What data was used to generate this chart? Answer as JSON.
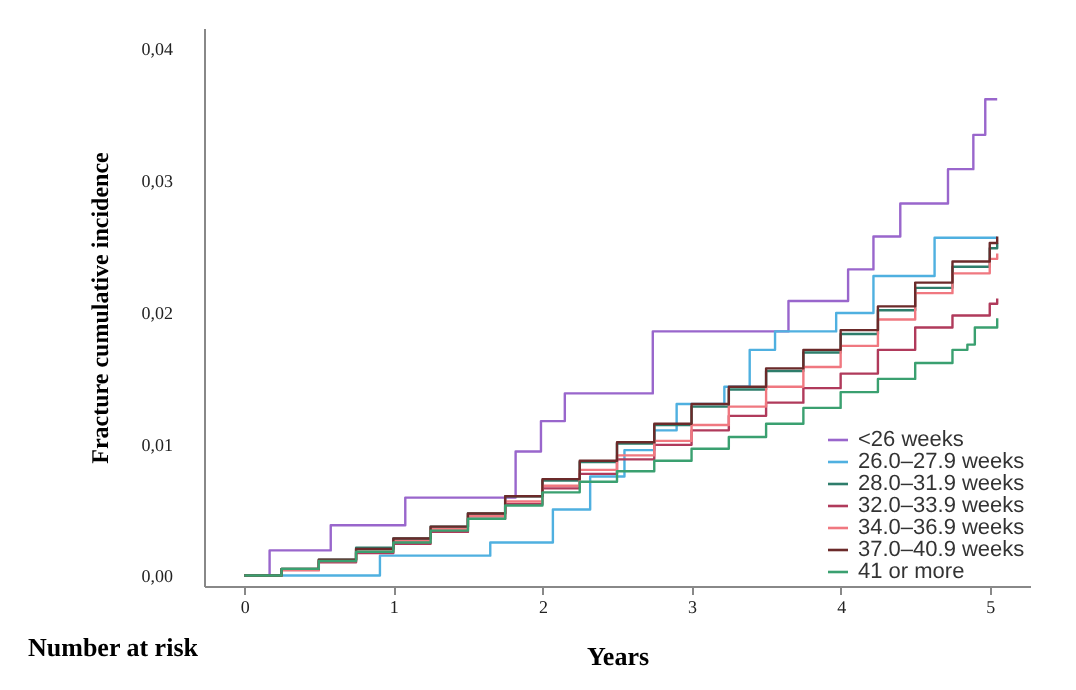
{
  "chart_data": {
    "type": "step",
    "xlabel": "Years",
    "ylabel": "Fracture cumulative incidence",
    "annotations": [
      "Number at risk"
    ],
    "xlim": [
      -0.27,
      5.27
    ],
    "xticks": [
      0,
      1,
      2,
      3,
      4,
      5
    ],
    "ylim": [
      -0.0008,
      0.0415
    ],
    "yticks": [
      {
        "value": 0,
        "label": "0,00"
      },
      {
        "value": 0.01,
        "label": "0,01"
      },
      {
        "value": 0.02,
        "label": "0,02"
      },
      {
        "value": 0.03,
        "label": "0,03"
      },
      {
        "value": 0.04,
        "label": "0,04"
      }
    ],
    "grid": false,
    "legend": "bottom right",
    "series": [
      {
        "name": "<26 weeks",
        "color": "#9966cc",
        "x": [
          0,
          0.17,
          0.58,
          1.08,
          1.82,
          1.99,
          2.15,
          2.74,
          3.65,
          4.05,
          4.22,
          4.4,
          4.72,
          4.89,
          4.97,
          5.05
        ],
        "values": [
          0,
          0.0019,
          0.0038,
          0.0059,
          0.0094,
          0.0117,
          0.0138,
          0.0185,
          0.0208,
          0.0232,
          0.0257,
          0.0282,
          0.0308,
          0.0334,
          0.0361,
          0.0361
        ]
      },
      {
        "name": "26.0–27.9 weeks",
        "color": "#4fb0e0",
        "x": [
          0,
          0.91,
          1.65,
          2.07,
          2.32,
          2.55,
          2.75,
          2.9,
          3.22,
          3.39,
          3.56,
          3.97,
          4.22,
          4.63,
          5.05
        ],
        "values": [
          0,
          0.0015,
          0.0025,
          0.005,
          0.0075,
          0.0095,
          0.011,
          0.013,
          0.0143,
          0.0171,
          0.0185,
          0.0199,
          0.0227,
          0.0256,
          0.0256
        ]
      },
      {
        "name": "28.0–31.9 weeks",
        "color": "#2e7d6b",
        "x": [
          0,
          0.25,
          0.5,
          0.75,
          1,
          1.25,
          1.5,
          1.75,
          2,
          2.25,
          2.5,
          2.75,
          3,
          3.25,
          3.5,
          3.75,
          4,
          4.25,
          4.5,
          4.75,
          5,
          5.05
        ],
        "values": [
          0,
          0.0005,
          0.0012,
          0.0021,
          0.0028,
          0.0037,
          0.0047,
          0.006,
          0.0072,
          0.0086,
          0.01,
          0.0114,
          0.0128,
          0.0141,
          0.0155,
          0.0169,
          0.0183,
          0.0201,
          0.0218,
          0.0234,
          0.0248,
          0.0252
        ]
      },
      {
        "name": "32.0–33.9 weeks",
        "color": "#b03a5b",
        "x": [
          0,
          0.25,
          0.5,
          0.75,
          1,
          1.25,
          1.5,
          1.75,
          2,
          2.25,
          2.5,
          2.75,
          3,
          3.25,
          3.5,
          3.75,
          4,
          4.25,
          4.5,
          4.75,
          5,
          5.05
        ],
        "values": [
          0,
          0.0004,
          0.001,
          0.0017,
          0.0024,
          0.0033,
          0.0043,
          0.0054,
          0.0066,
          0.0077,
          0.0088,
          0.0099,
          0.011,
          0.0121,
          0.0131,
          0.0142,
          0.0153,
          0.0171,
          0.0188,
          0.0197,
          0.0206,
          0.021
        ]
      },
      {
        "name": "34.0–36.9 weeks",
        "color": "#f07880",
        "x": [
          0,
          0.25,
          0.5,
          0.75,
          1,
          1.25,
          1.5,
          1.75,
          2,
          2.25,
          2.5,
          2.75,
          3,
          3.25,
          3.5,
          3.75,
          4,
          4.25,
          4.5,
          4.75,
          5,
          5.05
        ],
        "values": [
          0,
          0.0004,
          0.0011,
          0.0018,
          0.0026,
          0.0035,
          0.0045,
          0.0056,
          0.0068,
          0.008,
          0.0091,
          0.0102,
          0.0114,
          0.0128,
          0.0143,
          0.0158,
          0.0174,
          0.0194,
          0.0214,
          0.0229,
          0.024,
          0.0244
        ]
      },
      {
        "name": "37.0–40.9 weeks",
        "color": "#6b2a2a",
        "x": [
          0,
          0.25,
          0.5,
          0.75,
          1,
          1.25,
          1.5,
          1.75,
          2,
          2.25,
          2.5,
          2.75,
          3,
          3.25,
          3.5,
          3.75,
          4,
          4.25,
          4.5,
          4.75,
          5,
          5.05
        ],
        "values": [
          0,
          0.0005,
          0.0012,
          0.002,
          0.0028,
          0.0037,
          0.0047,
          0.006,
          0.0073,
          0.0087,
          0.0101,
          0.0115,
          0.013,
          0.0143,
          0.0157,
          0.0171,
          0.0186,
          0.0204,
          0.0222,
          0.0238,
          0.0252,
          0.0257
        ]
      },
      {
        "name": "41 or more",
        "color": "#3aa070",
        "x": [
          0,
          0.25,
          0.5,
          0.75,
          1,
          1.25,
          1.5,
          1.75,
          2,
          2.25,
          2.5,
          2.75,
          3,
          3.25,
          3.5,
          3.75,
          4,
          4.25,
          4.5,
          4.75,
          4.85,
          4.9,
          5.05
        ],
        "values": [
          0,
          0.0005,
          0.0011,
          0.0018,
          0.0025,
          0.0034,
          0.0043,
          0.0053,
          0.0063,
          0.0071,
          0.0079,
          0.0087,
          0.0096,
          0.0105,
          0.0115,
          0.0127,
          0.0139,
          0.0149,
          0.0161,
          0.0171,
          0.0175,
          0.0188,
          0.0195
        ]
      }
    ]
  }
}
